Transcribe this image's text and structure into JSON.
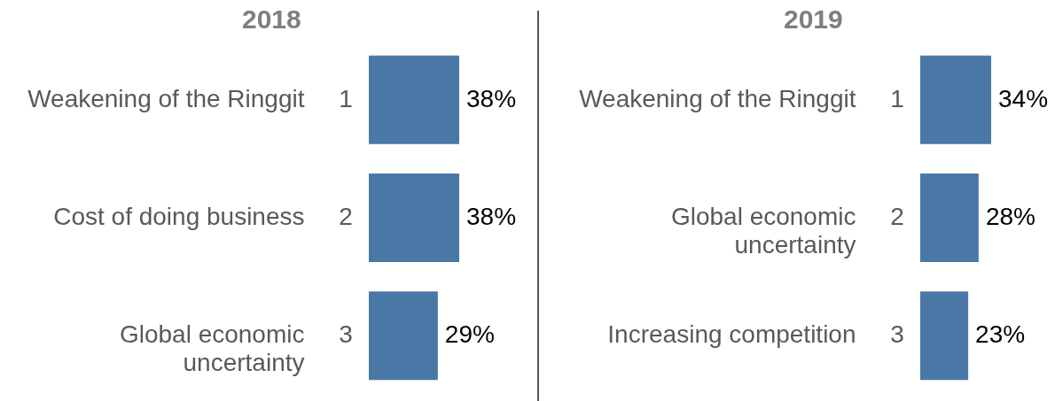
{
  "chart_data": [
    {
      "type": "bar",
      "orientation": "horizontal",
      "title": "2018",
      "categories": [
        "Weakening of the Ringgit",
        "Cost of doing business",
        "Global economic uncertainty"
      ],
      "values": [
        38,
        38,
        29
      ],
      "value_labels": [
        "38%",
        "38%",
        "29%"
      ],
      "color": "#4a78a6",
      "annotations": [
        "1",
        "2",
        "3"
      ]
    },
    {
      "type": "bar",
      "orientation": "horizontal",
      "title": "2019",
      "categories": [
        "Weakening of the Ringgit",
        "Global economic uncertainty",
        "Increasing competition"
      ],
      "values": [
        34,
        28,
        23
      ],
      "value_labels": [
        "34%",
        "28%",
        "23%"
      ],
      "color": "#4a78a6",
      "annotations": [
        "1",
        "2",
        "3"
      ]
    }
  ]
}
